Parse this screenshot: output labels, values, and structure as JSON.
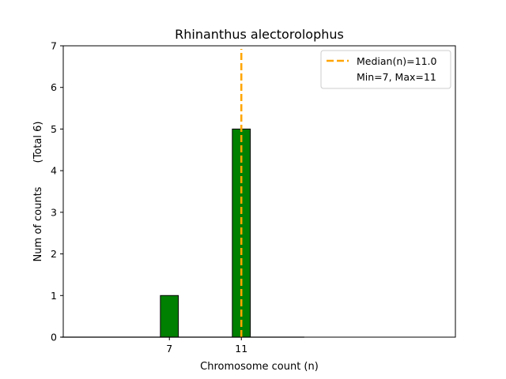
{
  "chart_data": {
    "type": "bar",
    "title": "Rhinanthus alectorolophus",
    "xlabel": "Chromosome count (n)",
    "ylabel": "Num of counts",
    "ylabel_total": "(Total 6)",
    "x": [
      7,
      11
    ],
    "values": [
      1,
      5
    ],
    "xticks": [
      "7",
      "11"
    ],
    "yticks": [
      0,
      1,
      2,
      3,
      4,
      5,
      6,
      7
    ],
    "ylim": [
      0,
      7
    ],
    "xlim": [
      1.1,
      22.9
    ],
    "bar_color": "#008000",
    "bar_edge_color": "#000000",
    "median": 11.0,
    "median_color": "#ffa500",
    "legend": {
      "placement": "top-right",
      "entries": [
        "Median(n)=11.0",
        "Min=7, Max=11"
      ]
    },
    "grid": false
  }
}
